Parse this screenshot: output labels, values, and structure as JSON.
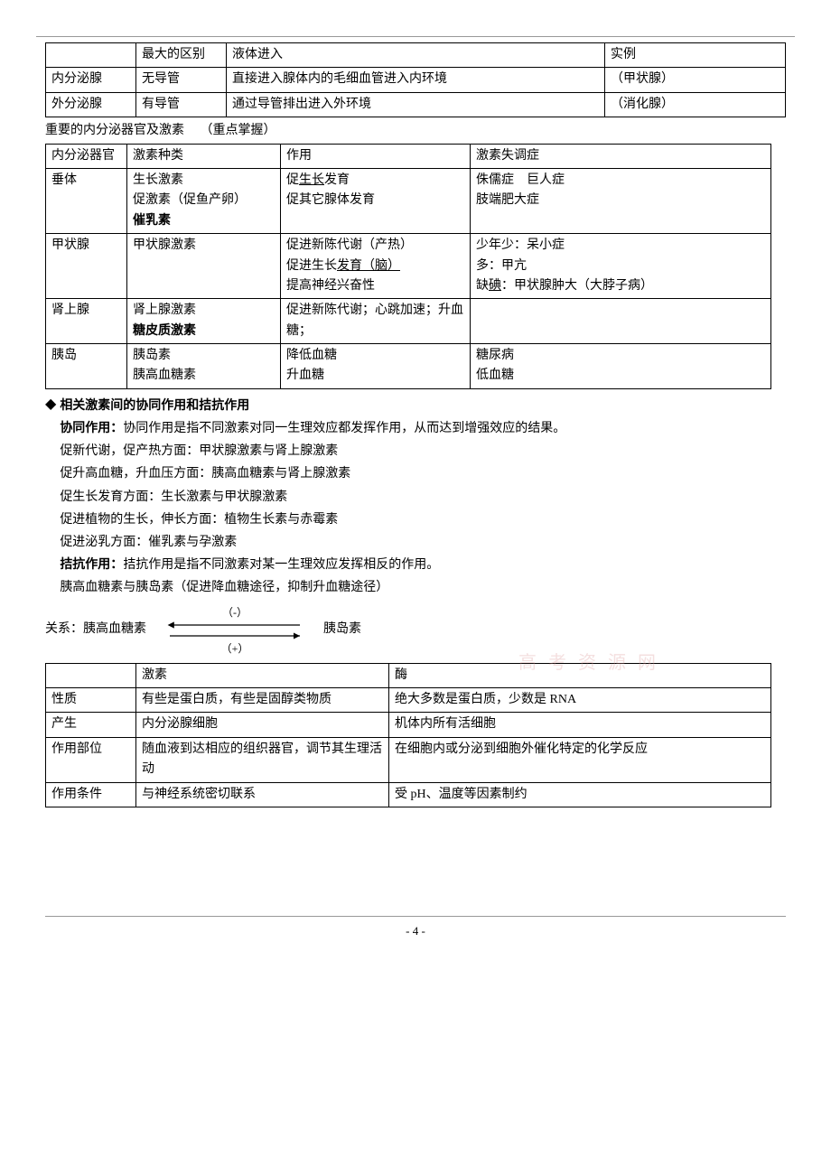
{
  "table1": {
    "header": [
      "",
      "最大的区别",
      "液体进入",
      "实例"
    ],
    "rows": [
      [
        "内分泌腺",
        "无导管",
        "直接进入腺体内的毛细血管进入内环境",
        "（甲状腺）"
      ],
      [
        "外分泌腺",
        "有导管",
        "通过导管排出进入外环境",
        "（消化腺）"
      ]
    ]
  },
  "section1": {
    "title": "重要的内分泌器官及激素",
    "note": "（重点掌握）"
  },
  "table2": {
    "header": [
      "内分泌器官",
      "激素种类",
      "作用",
      "激素失调症"
    ],
    "rows": [
      {
        "organ": "垂体",
        "hormones_html": "生长激素<br>促激素（促鱼产卵）<br><b>催乳素</b>",
        "effects_html": "促<u>生长</u>发育<br>促其它腺体发育",
        "disorders_html": "侏儒症　巨人症<br>肢端肥大症"
      },
      {
        "organ": "甲状腺",
        "hormones_html": "甲状腺激素",
        "effects_html": "促进新陈代谢（产热）<br>促进生长<u>发育（脑）</u><br>提高神经兴奋性",
        "disorders_html": "少年少：呆小症<br>多：甲亢<br>缺<u>碘</u>：甲状腺肿大（大脖子病）"
      },
      {
        "organ": "肾上腺",
        "hormones_html": "肾上腺激素<br><b>糖皮质激素</b>",
        "effects_html": "促进新陈代谢；心跳加速；升血糖；",
        "disorders_html": ""
      },
      {
        "organ": "胰岛",
        "hormones_html": "胰岛素<br>胰高血糖素",
        "effects_html": "降低血糖<br>升血糖",
        "disorders_html": "糖尿病<br>低血糖"
      }
    ]
  },
  "synergism": {
    "title": "相关激素间的协同作用和拮抗作用",
    "coop_label": "协同作用：",
    "coop_def": "协同作用是指不同激素对同一生理效应都发挥作用，从而达到增强效应的结果。",
    "lines": [
      "促新代谢，促产热方面：甲状腺激素与肾上腺激素",
      "促升高血糖，升血压方面：胰高血糖素与肾上腺激素",
      "促生长发育方面：生长激素与甲状腺激素",
      "促进植物的生长，伸长方面：植物生长素与赤霉素",
      "促进泌乳方面：催乳素与孕激素"
    ],
    "antag_label": "拮抗作用：",
    "antag_def": "拮抗作用是指不同激素对某一生理效应发挥相反的作用。",
    "antag_example": "胰高血糖素与胰岛素（促进降血糖途径，抑制升血糖途径）"
  },
  "relation": {
    "label": "关系：",
    "left": "胰高血糖素",
    "right": "胰岛素",
    "minus": "（-）",
    "plus": "（+）"
  },
  "table3": {
    "header": [
      "",
      "激素",
      "酶"
    ],
    "rows": [
      [
        "性质",
        "有些是蛋白质，有些是固醇类物质",
        "绝大多数是蛋白质，少数是 RNA"
      ],
      [
        "产生",
        "内分泌腺细胞",
        "机体内所有活细胞"
      ],
      [
        "作用部位",
        "随血液到达相应的组织器官，调节其生理活动",
        "在细胞内或分泌到细胞外催化特定的化学反应"
      ],
      [
        "作用条件",
        "与神经系统密切联系",
        "受 pH、温度等因素制约"
      ]
    ]
  },
  "watermark": "高 考 资 源 网",
  "footer": "- 4 -"
}
